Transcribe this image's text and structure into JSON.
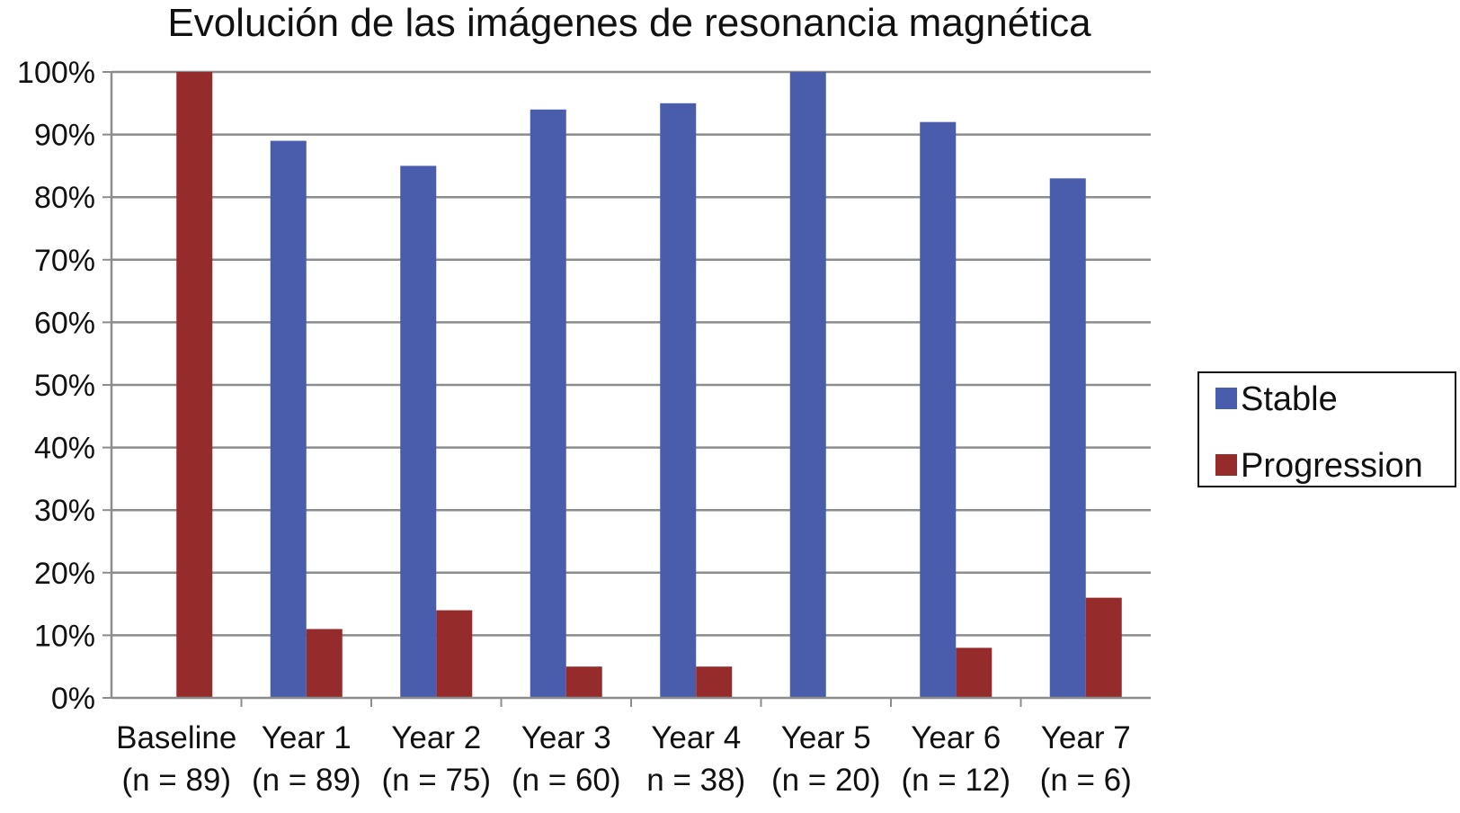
{
  "chart_data": {
    "type": "bar",
    "title": "Evolución de las imágenes de resonancia magnética",
    "categories": [
      {
        "label": "Baseline",
        "n": "(n = 89)"
      },
      {
        "label": "Year 1",
        "n": "(n = 89)"
      },
      {
        "label": "Year 2",
        "n": "(n = 75)"
      },
      {
        "label": "Year 3",
        "n": "(n = 60)"
      },
      {
        "label": "Year 4",
        "n": "n = 38)"
      },
      {
        "label": "Year 5",
        "n": "(n = 20)"
      },
      {
        "label": "Year 6",
        "n": "(n = 12)"
      },
      {
        "label": "Year 7",
        "n": "(n = 6)"
      }
    ],
    "series": [
      {
        "name": "Stable",
        "color": "#4A5DAD",
        "values": [
          0,
          89,
          85,
          94,
          95,
          100,
          92,
          83
        ]
      },
      {
        "name": "Progression",
        "color": "#952B2B",
        "values": [
          100,
          11,
          14,
          5,
          5,
          0,
          8,
          16
        ]
      }
    ],
    "ylim": [
      0,
      100
    ],
    "yticks": [
      "0%",
      "10%",
      "20%",
      "30%",
      "40%",
      "50%",
      "60%",
      "70%",
      "80%",
      "90%",
      "100%"
    ],
    "grid": true,
    "legend_position": "right"
  }
}
